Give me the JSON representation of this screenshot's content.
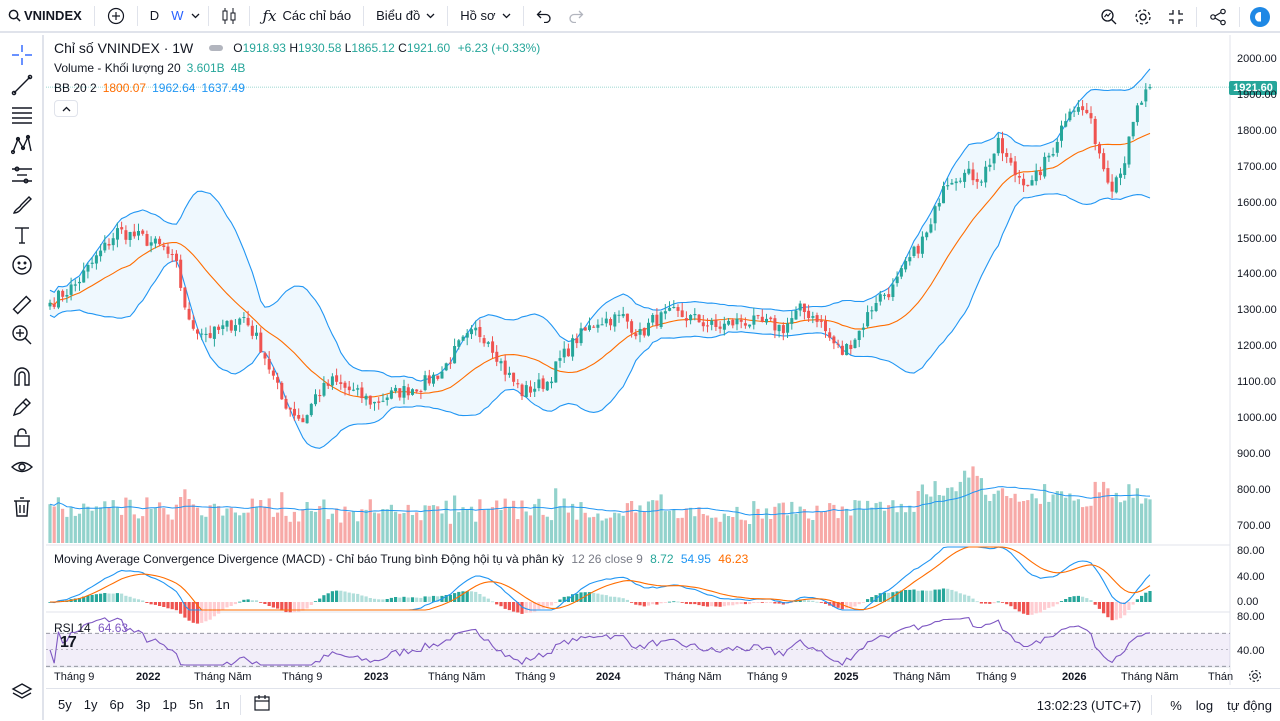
{
  "toolbar": {
    "symbol": "VNINDEX",
    "interval_day": "D",
    "interval_week": "W",
    "indicators_label": "Các chỉ báo",
    "chart_label": "Biểu đồ",
    "profile_label": "Hồ sơ"
  },
  "legend": {
    "title": "Chỉ số VNINDEX · 1W",
    "open_label": "O",
    "open": "1918.93",
    "high_label": "H",
    "high": "1930.58",
    "low_label": "L",
    "low": "1865.12",
    "close_label": "C",
    "close": "1921.60",
    "change": "+6.23 (+0.33%)",
    "volume_label": "Volume - Khối lượng 20",
    "volume_val": "3.601B",
    "volume_ma": "4B",
    "bb_label": "BB 20 2",
    "bb_basis": "1800.07",
    "bb_upper": "1962.64",
    "bb_lower": "1637.49"
  },
  "macd": {
    "label": "Moving Average Convergence Divergence (MACD) - Chỉ báo Trung bình Động hội tụ và phân kỳ",
    "params": "12 26 close 9",
    "hist": "8.72",
    "macd": "54.95",
    "signal": "46.23"
  },
  "rsi": {
    "label": "RSI 14",
    "value": "64.63"
  },
  "price_tag": "1921.60",
  "y_axis": [
    "2000.00",
    "1900.00",
    "1800.00",
    "1700.00",
    "1600.00",
    "1500.00",
    "1400.00",
    "1300.00",
    "1200.00",
    "1100.00",
    "1000.00",
    "900.00",
    "800.00",
    "700.00"
  ],
  "macd_axis": [
    "80.00",
    "40.00",
    "0.00"
  ],
  "rsi_axis": [
    "80.00",
    "40.00"
  ],
  "x_axis": [
    {
      "t": "Tháng 9",
      "b": false
    },
    {
      "t": "2022",
      "b": true
    },
    {
      "t": "Tháng Năm",
      "b": false
    },
    {
      "t": "Tháng 9",
      "b": false
    },
    {
      "t": "2023",
      "b": true
    },
    {
      "t": "Tháng Năm",
      "b": false
    },
    {
      "t": "Tháng 9",
      "b": false
    },
    {
      "t": "2024",
      "b": true
    },
    {
      "t": "Tháng Năm",
      "b": false
    },
    {
      "t": "Tháng 9",
      "b": false
    },
    {
      "t": "2025",
      "b": true
    },
    {
      "t": "Tháng Năm",
      "b": false
    },
    {
      "t": "Tháng 9",
      "b": false
    },
    {
      "t": "2026",
      "b": true
    },
    {
      "t": "Tháng Năm",
      "b": false
    },
    {
      "t": "Thán",
      "b": false
    }
  ],
  "ranges": [
    "5y",
    "1y",
    "6p",
    "3p",
    "1p",
    "5n",
    "1n"
  ],
  "bottom": {
    "time": "13:02:23 (UTC+7)",
    "percent": "%",
    "log": "log",
    "auto": "tự động"
  },
  "colors": {
    "up": "#26a69a",
    "down": "#ef5350",
    "bb_band": "#2196f3",
    "bb_basis": "#ff6d00",
    "rsi": "#7e57c2"
  },
  "chart_data": {
    "type": "candlestick",
    "symbol": "VNINDEX",
    "interval": "1W",
    "ylim": [
      650,
      2050
    ],
    "anchors": [
      [
        0,
        1320
      ],
      [
        6,
        1370
      ],
      [
        12,
        1460
      ],
      [
        16,
        1520
      ],
      [
        22,
        1500
      ],
      [
        27,
        1470
      ],
      [
        30,
        1420
      ],
      [
        33,
        1260
      ],
      [
        38,
        1230
      ],
      [
        43,
        1260
      ],
      [
        46,
        1280
      ],
      [
        50,
        1200
      ],
      [
        55,
        1050
      ],
      [
        60,
        990
      ],
      [
        63,
        1060
      ],
      [
        67,
        1100
      ],
      [
        72,
        1070
      ],
      [
        77,
        1040
      ],
      [
        80,
        1060
      ],
      [
        88,
        1090
      ],
      [
        93,
        1130
      ],
      [
        97,
        1200
      ],
      [
        101,
        1240
      ],
      [
        104,
        1220
      ],
      [
        108,
        1130
      ],
      [
        112,
        1070
      ],
      [
        118,
        1100
      ],
      [
        121,
        1160
      ],
      [
        125,
        1220
      ],
      [
        130,
        1270
      ],
      [
        136,
        1280
      ],
      [
        140,
        1230
      ],
      [
        143,
        1270
      ],
      [
        148,
        1290
      ],
      [
        154,
        1270
      ],
      [
        158,
        1250
      ],
      [
        164,
        1270
      ],
      [
        170,
        1260
      ],
      [
        174,
        1250
      ],
      [
        178,
        1300
      ],
      [
        182,
        1280
      ],
      [
        185,
        1220
      ],
      [
        188,
        1180
      ],
      [
        192,
        1240
      ],
      [
        196,
        1330
      ],
      [
        200,
        1360
      ],
      [
        204,
        1440
      ],
      [
        209,
        1530
      ],
      [
        212,
        1660
      ],
      [
        216,
        1680
      ],
      [
        221,
        1670
      ],
      [
        225,
        1760
      ],
      [
        229,
        1680
      ],
      [
        233,
        1650
      ],
      [
        238,
        1750
      ],
      [
        242,
        1870
      ],
      [
        246,
        1850
      ],
      [
        248,
        1780
      ],
      [
        250,
        1700
      ],
      [
        252,
        1650
      ],
      [
        255,
        1720
      ],
      [
        258,
        1860
      ],
      [
        261,
        1921.6
      ]
    ],
    "volume_axis_note": "volume pane shares right axis region",
    "last_close": 1921.6
  }
}
